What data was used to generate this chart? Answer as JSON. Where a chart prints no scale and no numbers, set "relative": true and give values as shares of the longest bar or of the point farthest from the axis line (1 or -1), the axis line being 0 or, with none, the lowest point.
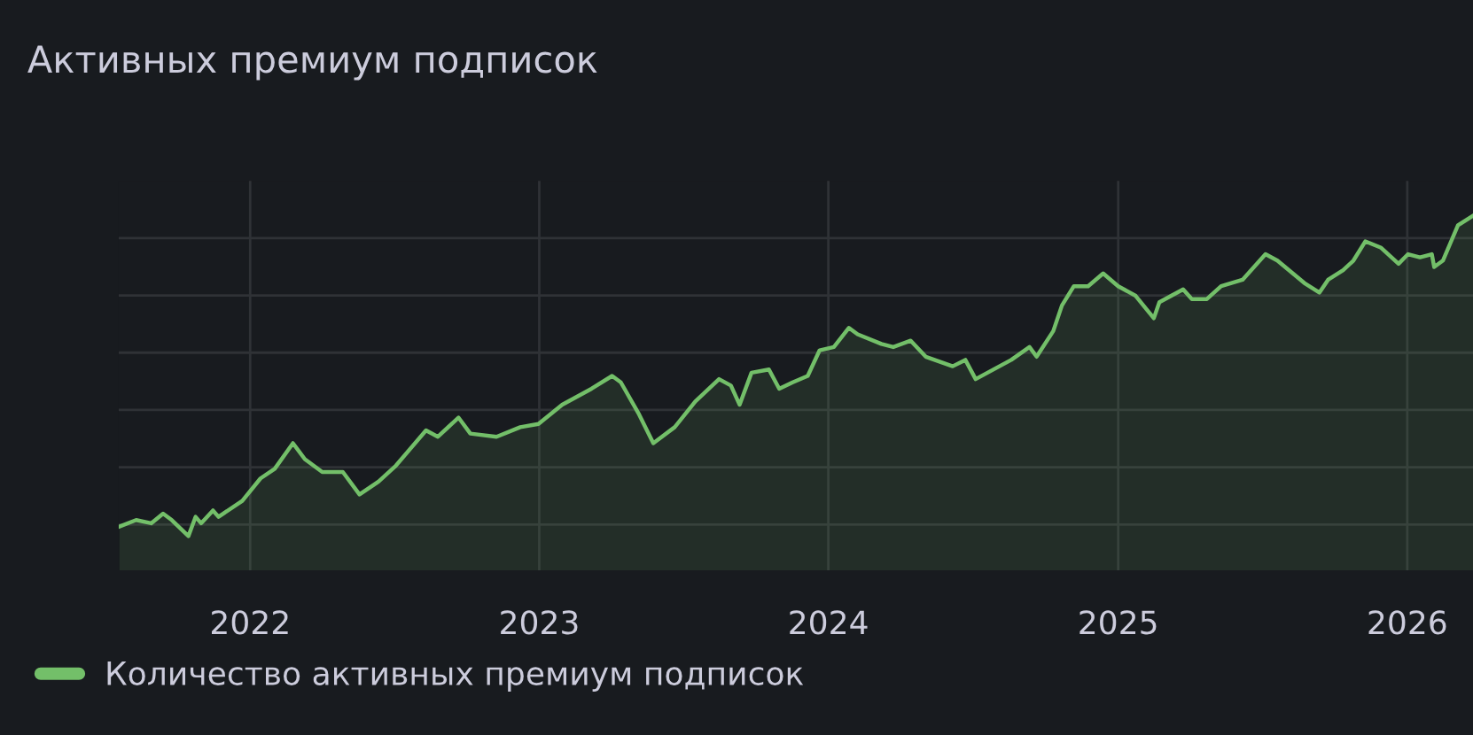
{
  "chart_data": {
    "type": "area",
    "title": "Активных премиум подписок",
    "relative": true,
    "grid": true,
    "legend": "bottom left",
    "xlim": [
      "2021-07-19",
      "2026-03-25"
    ],
    "xticks": [
      {
        "value": "2022-01-01",
        "label": "2022"
      },
      {
        "value": "2023-01-01",
        "label": "2023"
      },
      {
        "value": "2024-01-01",
        "label": "2024"
      },
      {
        "value": "2025-01-01",
        "label": "2025"
      },
      {
        "value": "2026-01-01",
        "label": "2026"
      }
    ],
    "x": [
      "2021-07-20",
      "2021-08-10",
      "2021-08-29",
      "2021-09-13",
      "2021-09-24",
      "2021-10-15",
      "2021-10-24",
      "2021-10-31",
      "2021-11-15",
      "2021-11-22",
      "2021-12-22",
      "2022-01-14",
      "2022-02-01",
      "2022-02-24",
      "2022-03-11",
      "2022-04-02",
      "2022-04-28",
      "2022-05-19",
      "2022-06-12",
      "2022-07-04",
      "2022-08-11",
      "2022-08-26",
      "2022-09-21",
      "2022-10-06",
      "2022-11-08",
      "2022-12-08",
      "2022-12-31",
      "2023-01-30",
      "2023-03-08",
      "2023-04-03",
      "2023-04-14",
      "2023-05-07",
      "2023-05-25",
      "2023-06-21",
      "2023-07-17",
      "2023-08-16",
      "2023-08-31",
      "2023-09-11",
      "2023-09-26",
      "2023-10-18",
      "2023-10-31",
      "2023-11-17",
      "2023-12-06",
      "2023-12-21",
      "2024-01-08",
      "2024-01-27",
      "2024-02-07",
      "2024-03-08",
      "2024-03-23",
      "2024-04-14",
      "2024-05-03",
      "2024-06-06",
      "2024-06-22",
      "2024-07-05",
      "2024-08-19",
      "2024-09-11",
      "2024-09-20",
      "2024-10-11",
      "2024-10-22",
      "2024-11-06",
      "2024-11-24",
      "2024-12-13",
      "2025-01-01",
      "2025-01-23",
      "2025-02-15",
      "2025-02-22",
      "2025-03-24",
      "2025-04-04",
      "2025-04-23",
      "2025-05-11",
      "2025-06-07",
      "2025-07-06",
      "2025-07-21",
      "2025-08-24",
      "2025-09-12",
      "2025-09-23",
      "2025-10-12",
      "2025-10-25",
      "2025-11-09",
      "2025-11-29",
      "2025-12-21",
      "2026-01-02",
      "2026-01-17",
      "2026-02-01",
      "2026-02-04",
      "2026-02-15",
      "2026-03-06",
      "2026-03-25"
    ],
    "series": [
      {
        "name": "Количество активных премиум подписок",
        "color": "#73bf69",
        "values": [
          0.03,
          0.05,
          0.04,
          0.07,
          0.05,
          0,
          0.06,
          0.04,
          0.08,
          0.06,
          0.11,
          0.18,
          0.21,
          0.29,
          0.24,
          0.2,
          0.2,
          0.13,
          0.17,
          0.22,
          0.33,
          0.31,
          0.37,
          0.32,
          0.31,
          0.34,
          0.35,
          0.41,
          0.46,
          0.5,
          0.48,
          0.38,
          0.29,
          0.34,
          0.42,
          0.49,
          0.47,
          0.41,
          0.51,
          0.52,
          0.46,
          0.48,
          0.5,
          0.58,
          0.59,
          0.65,
          0.63,
          0.6,
          0.59,
          0.61,
          0.56,
          0.53,
          0.55,
          0.49,
          0.55,
          0.59,
          0.56,
          0.64,
          0.72,
          0.78,
          0.78,
          0.82,
          0.78,
          0.75,
          0.68,
          0.73,
          0.77,
          0.74,
          0.74,
          0.78,
          0.8,
          0.88,
          0.86,
          0.79,
          0.76,
          0.8,
          0.83,
          0.86,
          0.92,
          0.9,
          0.85,
          0.88,
          0.87,
          0.88,
          0.84,
          0.86,
          0.97,
          1
        ]
      }
    ]
  }
}
